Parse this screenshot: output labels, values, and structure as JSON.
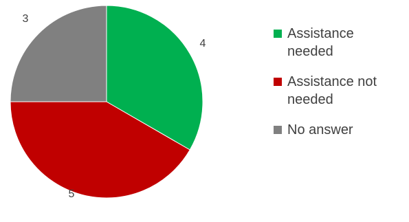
{
  "chart_data": {
    "type": "pie",
    "title": "",
    "categories": [
      "Assistance needed",
      "Assistance not needed",
      "No answer"
    ],
    "values": [
      4,
      5,
      3
    ],
    "colors": [
      "#00b050",
      "#c00000",
      "#808080"
    ],
    "start_angle_deg": 0,
    "direction": "clockwise",
    "data_labels": [
      "4",
      "5",
      "3"
    ],
    "legend_position": "right"
  }
}
